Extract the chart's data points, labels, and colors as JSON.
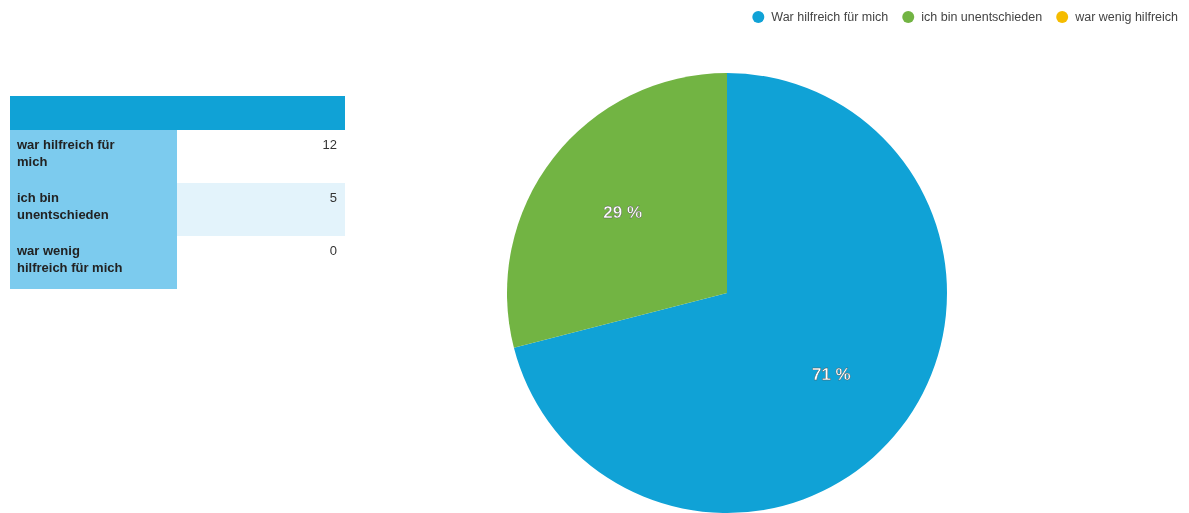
{
  "chart_data": [
    {
      "type": "other",
      "categories": [
        "war hilfreich für mich",
        "ich bin unentschieden",
        "war wenig hilfreich für mich"
      ],
      "values": [
        12,
        5,
        0
      ],
      "data_labels": true
    },
    {
      "type": "pie",
      "categories": [
        "War hilfreich für mich",
        "ich bin unentschieden",
        "war wenig hilfreich"
      ],
      "values": [
        71,
        29,
        0
      ],
      "colors": [
        "#10a2d6",
        "#72b443",
        "#f5bc00"
      ],
      "value_labels": [
        "71 %",
        "29 %",
        null
      ],
      "legend": "top right"
    }
  ]
}
